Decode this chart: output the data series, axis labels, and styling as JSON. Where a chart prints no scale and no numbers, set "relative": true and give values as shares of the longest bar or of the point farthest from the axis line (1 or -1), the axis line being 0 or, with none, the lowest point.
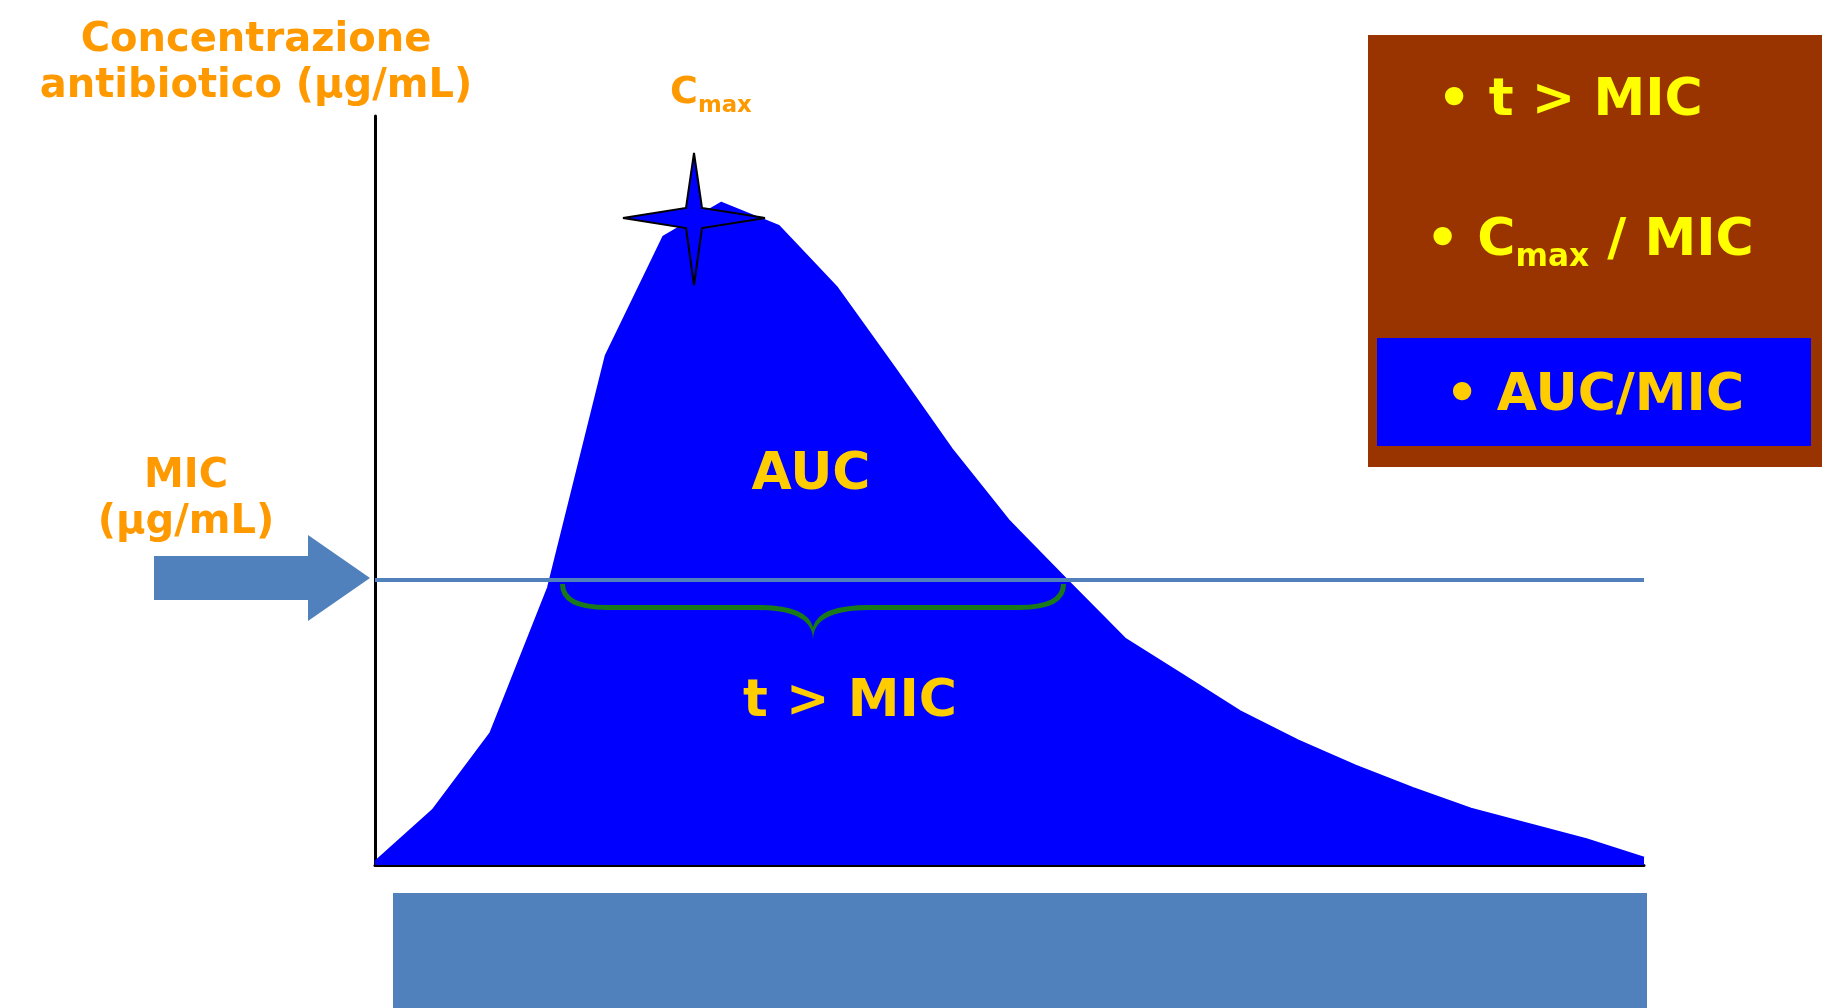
{
  "chart_data": {
    "type": "area",
    "relative": true,
    "ylabel": "Concentrazione antibiotico (μg/mL)",
    "categories": [
      null,
      null,
      null,
      null,
      null,
      null,
      null,
      null,
      null,
      null,
      null,
      null,
      null,
      null,
      null,
      null,
      null,
      null,
      null,
      null,
      null,
      null,
      null
    ],
    "series": [
      {
        "color": "#0000ff",
        "values": [
          0.005,
          0.083,
          0.199,
          0.419,
          0.769,
          0.949,
          1.0,
          0.965,
          0.873,
          0.752,
          0.628,
          0.519,
          0.43,
          0.342,
          0.287,
          0.232,
          0.188,
          0.15,
          0.116,
          0.085,
          0.062,
          0.039,
          0.011
        ]
      }
    ],
    "ref_lines": [
      {
        "axis": "y",
        "value": 0.433,
        "label": "MIC (μg/mL)",
        "color": "#5181bd"
      }
    ],
    "annotations": [
      "C$_{max}$",
      "AUC",
      "t > MIC",
      "• t > MIC",
      "• C$_{max}$ / MIC",
      "• AUC/MIC"
    ],
    "grid": false
  }
}
